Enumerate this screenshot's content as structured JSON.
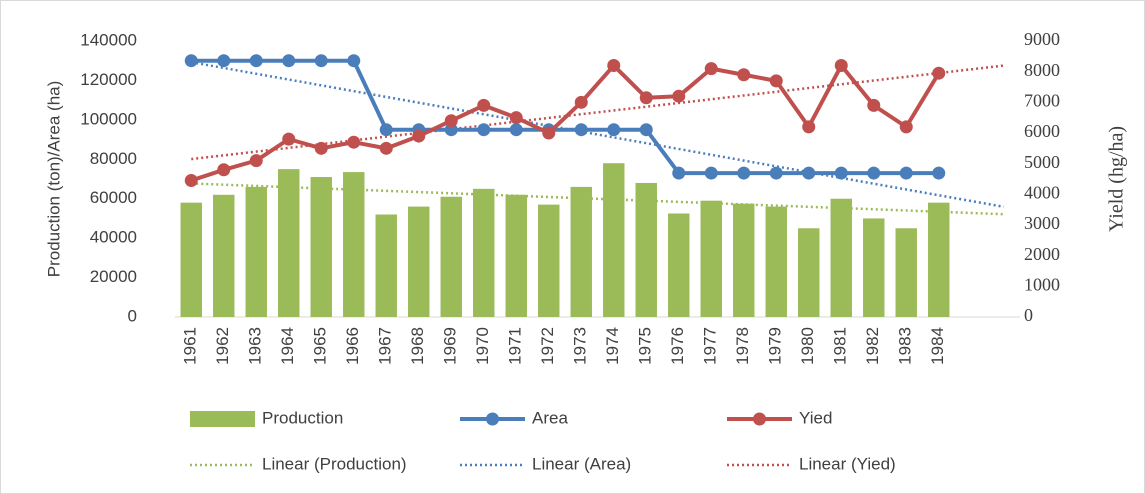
{
  "chart_data": {
    "type": "combo",
    "y_label": "Production (ton)/Area (ha)",
    "y2_label": "Yield (hg/ha)",
    "categories": [
      "1961",
      "1962",
      "1963",
      "1964",
      "1965",
      "1966",
      "1967",
      "1968",
      "1969",
      "1970",
      "1971",
      "1972",
      "1973",
      "1974",
      "1975",
      "1976",
      "1977",
      "1978",
      "1979",
      "1980",
      "1981",
      "1982",
      "1983",
      "1984",
      null,
      null
    ],
    "ylim": [
      0,
      140000
    ],
    "yticks": [
      0,
      20000,
      40000,
      60000,
      80000,
      100000,
      120000,
      140000
    ],
    "y2lim": [
      0,
      9000
    ],
    "y2ticks": [
      0,
      1000,
      2000,
      3000,
      4000,
      5000,
      6000,
      7000,
      8000,
      9000
    ],
    "series": [
      {
        "name": "Production",
        "kind": "bar",
        "color": "#9bbb59",
        "values": [
          58000,
          62000,
          66000,
          75000,
          71000,
          73500,
          52000,
          56000,
          61000,
          65000,
          62000,
          57000,
          66000,
          78000,
          68000,
          52500,
          59000,
          57500,
          56000,
          45000,
          60000,
          50000,
          45000,
          58000,
          null,
          null
        ],
        "trendline": "Linear (Production)"
      },
      {
        "name": "Area",
        "kind": "line",
        "color": "#4a7ebb",
        "values": [
          130000,
          130000,
          130000,
          130000,
          130000,
          130000,
          95000,
          95000,
          95000,
          95000,
          95000,
          95000,
          95000,
          95000,
          95000,
          73000,
          73000,
          73000,
          73000,
          73000,
          73000,
          73000,
          73000,
          73000,
          null,
          null
        ],
        "trendline": "Linear (Area)"
      },
      {
        "name": "Yied",
        "kind": "line",
        "axis": "y2",
        "color": "#c0504d",
        "values": [
          4450,
          4800,
          5100,
          5800,
          5500,
          5700,
          5500,
          5900,
          6400,
          6900,
          6500,
          6000,
          7000,
          8200,
          7150,
          7200,
          8100,
          7900,
          7700,
          6200,
          8200,
          6900,
          6200,
          7950,
          null,
          null
        ],
        "trendline": "Linear (Yied)"
      }
    ]
  }
}
